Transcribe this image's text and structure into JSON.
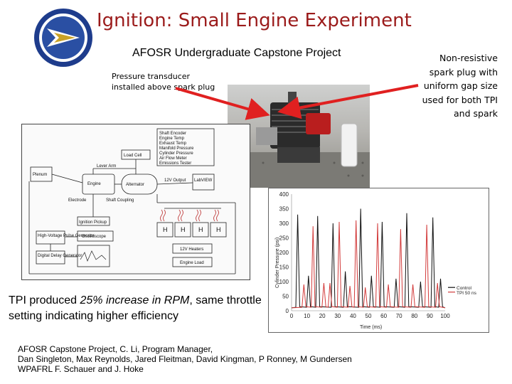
{
  "slide": {
    "title": "Ignition: Small Engine Experiment",
    "subtitle": "AFOSR Undergraduate Capstone Project",
    "note_left": "Pressure transducer installed above spark plug",
    "note_right": "Non-resistive spark plug with uniform gap size used for both TPI and spark",
    "tpi_text_a": "TPI produced ",
    "tpi_text_em": "25% increase in RPM",
    "tpi_text_b": ", same throttle setting indicating higher efficiency",
    "credits": [
      "AFOSR Capstone Project, C. Li, Program Manager,",
      "Dan Singleton, Max Reynolds, Jared Fleitman, David Kingman, P Ronney, M Gundersen",
      "WPAFRL F. Schauer and J. Hoke"
    ],
    "colors": {
      "title": "#9b1b1b",
      "arrow": "#e02020",
      "control": "#111111",
      "tpi": "#d23a3a"
    }
  },
  "diagram": {
    "labels": {
      "shaft_encoder": "Shaft Encoder",
      "engine_temp": "Engine Temp",
      "exhaust_temp": "Exhaust Temp",
      "manifold_pressure": "Manifold Pressure",
      "cylinder_pressure": "Cylinder Pressure",
      "air_flow_meter": "Air Flow Meter",
      "emissions_tester": "Emissions Tester",
      "load_cell": "Load Cell",
      "lever_arm": "Lever Arm",
      "plenum": "Plenum",
      "engine": "Engine",
      "alternator": "Alternator",
      "output_12v": "12V Output",
      "labview": "LabVIEW",
      "electrode": "Electrode",
      "shaft_coupling": "Shaft Coupling",
      "ignition_pickup": "Ignition Pickup",
      "hv_pulse_gen": "High-Voltage Pulse Generator",
      "oscilloscope": "Oscilloscope",
      "digital_delay": "Digital Delay Generator",
      "heaters": "12V Heaters",
      "engine_load": "Engine Load",
      "heater_label": "H"
    }
  },
  "chart_data": {
    "type": "line",
    "ylabel": "Cylinder Pressure (psi)",
    "xlabel": "Time (ms)",
    "xlim": [
      0,
      100
    ],
    "ylim": [
      0,
      400
    ],
    "xticks": [
      0,
      10,
      20,
      30,
      40,
      50,
      60,
      70,
      80,
      90,
      100
    ],
    "yticks": [
      0,
      50,
      100,
      150,
      200,
      250,
      300,
      350,
      400
    ],
    "legend_position": "right",
    "series": [
      {
        "name": "Control",
        "color": "#111111",
        "peaks": [
          [
            4,
            330
          ],
          [
            11,
            120
          ],
          [
            17,
            325
          ],
          [
            27,
            300
          ],
          [
            35,
            135
          ],
          [
            45,
            350
          ],
          [
            52,
            120
          ],
          [
            59,
            305
          ],
          [
            68,
            110
          ],
          [
            75,
            335
          ],
          [
            84,
            100
          ],
          [
            92,
            320
          ],
          [
            97,
            110
          ]
        ]
      },
      {
        "name": "TPI 50 ns",
        "color": "#d23a3a",
        "peaks": [
          [
            8,
            90
          ],
          [
            14,
            290
          ],
          [
            21,
            95
          ],
          [
            25,
            95
          ],
          [
            31,
            305
          ],
          [
            38,
            85
          ],
          [
            42,
            310
          ],
          [
            48,
            80
          ],
          [
            56,
            300
          ],
          [
            63,
            90
          ],
          [
            71,
            280
          ],
          [
            79,
            90
          ],
          [
            88,
            295
          ],
          [
            95,
            95
          ]
        ]
      }
    ]
  }
}
